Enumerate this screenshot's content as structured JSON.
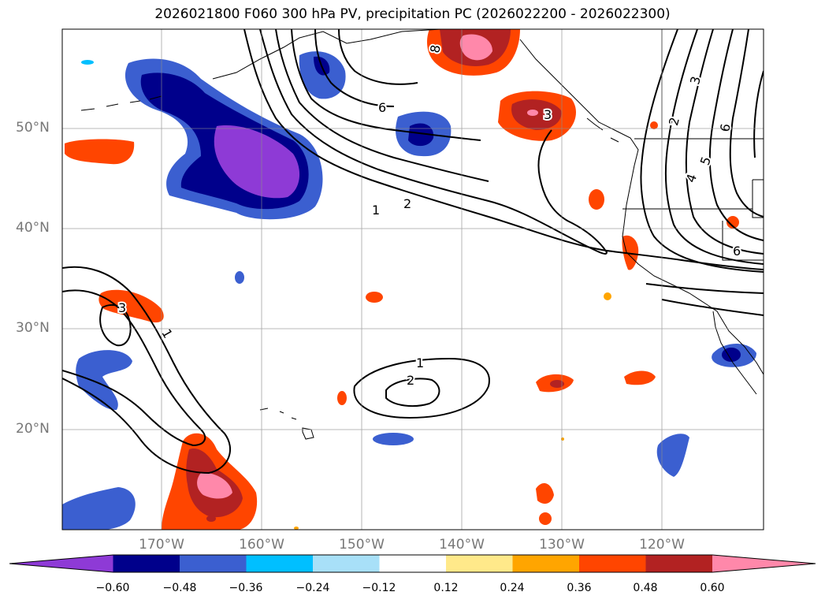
{
  "title": "2026021800 F060 300 hPa PV, precipitation PC (2026022200 - 2026022300)",
  "latitudes": [
    {
      "label": "50°N",
      "value": 50
    },
    {
      "label": "40°N",
      "value": 40
    },
    {
      "label": "30°N",
      "value": 30
    },
    {
      "label": "20°N",
      "value": 20
    }
  ],
  "longitudes": [
    {
      "label": "170°W",
      "value": -170
    },
    {
      "label": "160°W",
      "value": -160
    },
    {
      "label": "150°W",
      "value": -150
    },
    {
      "label": "140°W",
      "value": -140
    },
    {
      "label": "130°W",
      "value": -130
    },
    {
      "label": "120°W",
      "value": -120
    }
  ],
  "colorbar": {
    "ticks": [
      "−0.60",
      "−0.48",
      "−0.36",
      "−0.24",
      "−0.12",
      "0.12",
      "0.24",
      "0.36",
      "0.48",
      "0.60"
    ],
    "colors": [
      "#8e3ad6",
      "#00008b",
      "#3b5fd0",
      "#00bfff",
      "#a8e0f8",
      "#ffffff",
      "#ffe98a",
      "#ffa500",
      "#ff4500",
      "#b22222",
      "#ff88aa"
    ]
  },
  "contour_labels": [
    "6",
    "8",
    "3",
    "1",
    "2",
    "1",
    "2",
    "3",
    "1",
    "3",
    "2",
    "5",
    "4",
    "6",
    "6"
  ]
}
